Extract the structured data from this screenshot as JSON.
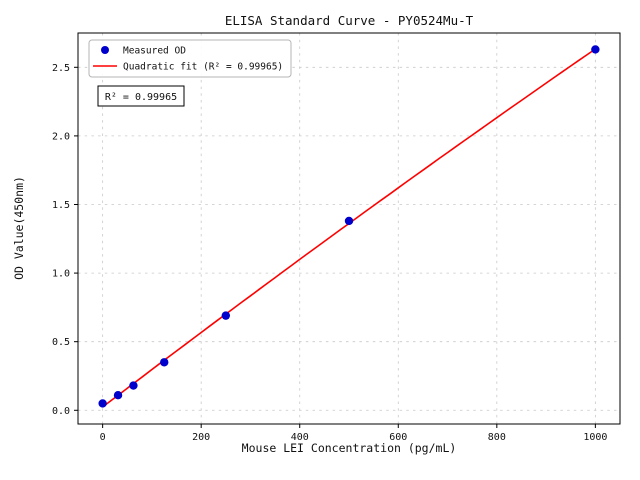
{
  "figure": {
    "background": "#ffffff"
  },
  "chart_data": {
    "type": "scatter",
    "title": "ELISA Standard Curve - PY0524Mu-T",
    "xlabel": "Mouse LEI Concentration (pg/mL)",
    "ylabel": "OD Value(450nm)",
    "x_ticks": [
      0,
      200,
      400,
      600,
      800,
      1000
    ],
    "y_ticks": [
      "0.0",
      "0.5",
      "1.0",
      "1.5",
      "2.0",
      "2.5"
    ],
    "xlim": [
      -50,
      1050
    ],
    "ylim": [
      -0.1,
      2.75
    ],
    "grid": true,
    "grid_color": "#c8c8c8",
    "legend": {
      "position": "upper-left",
      "entries": [
        {
          "label": "Measured OD",
          "marker": "circle",
          "color": "#0000cd"
        },
        {
          "label": "Quadratic fit (R² = 0.99965)",
          "marker": "line",
          "color": "#ff0000"
        }
      ]
    },
    "annotation": "R² = 0.99965",
    "series": [
      {
        "name": "Measured OD",
        "type": "scatter",
        "color": "#0000cd",
        "x": [
          0,
          31.25,
          62.5,
          125,
          250,
          500,
          1000
        ],
        "y": [
          0.05,
          0.11,
          0.18,
          0.35,
          0.69,
          1.38,
          2.63
        ]
      },
      {
        "name": "Quadratic fit (R² = 0.99965)",
        "type": "quadratic-fit",
        "color": "#ff0000",
        "x_range": [
          0,
          1000
        ]
      }
    ]
  }
}
